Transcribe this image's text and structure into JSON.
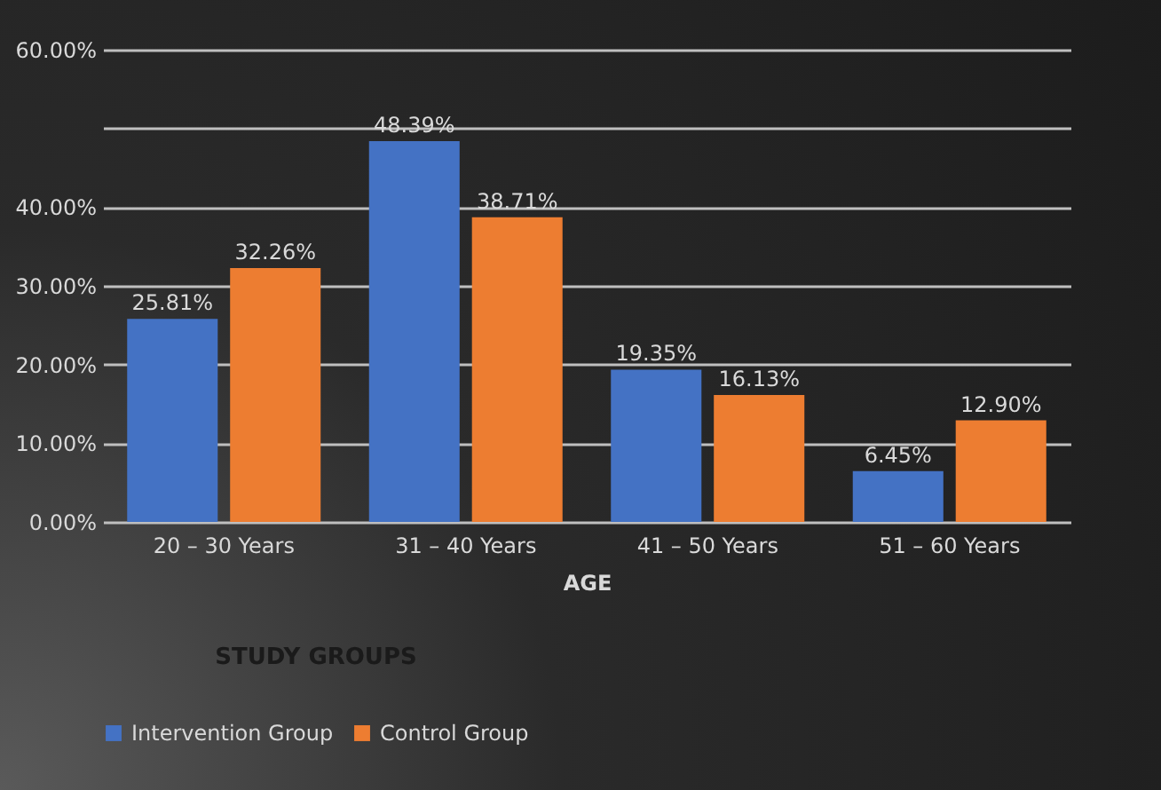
{
  "chart_data": {
    "type": "bar",
    "xlabel": "AGE",
    "legend_title": "STUDY GROUPS",
    "categories": [
      "20 – 30 Years",
      "31 – 40 Years",
      "41 – 50 Years",
      "51 – 60 Years"
    ],
    "series": [
      {
        "name": "Intervention Group",
        "color": "#4472c4",
        "values": [
          25.81,
          48.39,
          19.35,
          6.45
        ],
        "value_labels": [
          "25.81%",
          "48.39%",
          "19.35%",
          "6.45%"
        ]
      },
      {
        "name": "Control Group",
        "color": "#ed7d31",
        "values": [
          32.26,
          38.71,
          16.13,
          12.9
        ],
        "value_labels": [
          "32.26%",
          "38.71%",
          "16.13%",
          "12.90%"
        ]
      }
    ],
    "ylim": [
      0,
      60
    ],
    "yticks": [
      {
        "value": 0,
        "label": "0.00%"
      },
      {
        "value": 10,
        "label": "10.00%"
      },
      {
        "value": 20,
        "label": "20.00%"
      },
      {
        "value": 30,
        "label": "30.00%"
      },
      {
        "value": 40,
        "label": "40.00%"
      },
      {
        "value": 50,
        "label": null
      },
      {
        "value": 60,
        "label": "60.00%"
      }
    ],
    "grid": "y",
    "legend": "bottom"
  }
}
